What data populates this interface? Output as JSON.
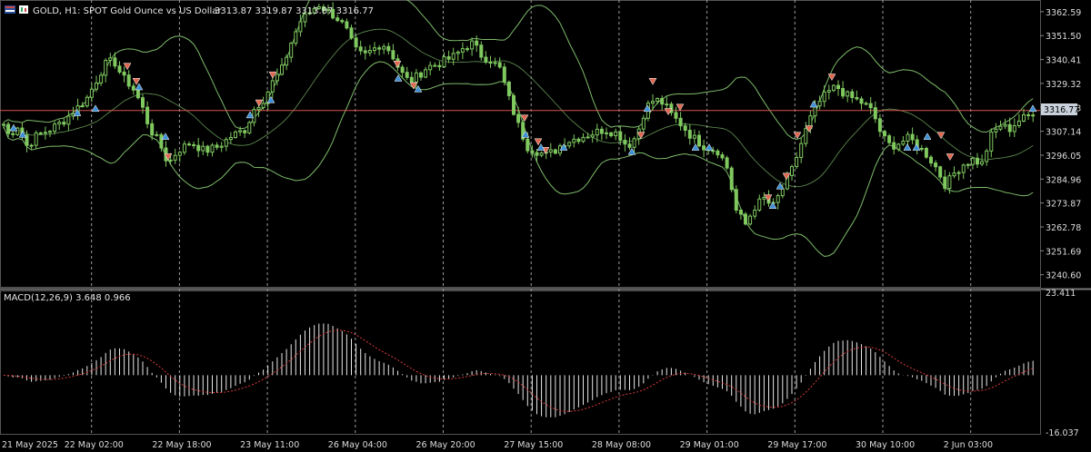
{
  "header": {
    "title": "GOLD, H1:  SPOT Gold Ounce vs US Dollar",
    "ohlc": "3313.87 3319.87 3313.87 3316.77"
  },
  "macd_header": {
    "label": "MACD(12,26,9) 3.648 0.966"
  },
  "colors": {
    "background": "#000000",
    "candle": "#7fc95f",
    "band": "#7dbb6a",
    "price_line": "#d9534f",
    "sell_arrow": "#e0674f",
    "buy_arrow": "#3d8fd6",
    "macd_hist": "#e8e8e8",
    "macd_signal": "#d93b3b",
    "grid": "#9a9a9a"
  },
  "chart_data": [
    {
      "type": "candlestick",
      "symbol": "GOLD",
      "timeframe": "H1",
      "ylim": [
        3235.0,
        3368.0
      ],
      "y_ticks": [
        "3362.59",
        "3351.50",
        "3340.41",
        "3329.32",
        "3318.23",
        "3307.14",
        "3296.05",
        "3284.96",
        "3273.87",
        "3262.78",
        "3251.69",
        "3240.60"
      ],
      "x_ticks": [
        "21 May 2025",
        "22 May 02:00",
        "22 May 18:00",
        "23 May 11:00",
        "26 May 04:00",
        "26 May 20:00",
        "27 May 15:00",
        "28 May 08:00",
        "29 May 01:00",
        "29 May 17:00",
        "30 May 10:00",
        "2 Jun 03:00"
      ],
      "current_price": "3316.77",
      "current_price_value": 3316.77,
      "key_points": [
        [
          0,
          3314
        ],
        [
          10,
          3305
        ],
        [
          20,
          3310
        ],
        [
          30,
          3300
        ],
        [
          40,
          3305
        ],
        [
          55,
          3308
        ],
        [
          70,
          3312
        ],
        [
          85,
          3318
        ],
        [
          95,
          3322
        ],
        [
          105,
          3330
        ],
        [
          115,
          3338
        ],
        [
          125,
          3340
        ],
        [
          135,
          3332
        ],
        [
          145,
          3328
        ],
        [
          155,
          3320
        ],
        [
          165,
          3308
        ],
        [
          175,
          3302
        ],
        [
          185,
          3292
        ],
        [
          195,
          3298
        ],
        [
          210,
          3302
        ],
        [
          225,
          3298
        ],
        [
          240,
          3300
        ],
        [
          255,
          3305
        ],
        [
          270,
          3308
        ],
        [
          280,
          3318
        ],
        [
          290,
          3322
        ],
        [
          300,
          3330
        ],
        [
          310,
          3336
        ],
        [
          320,
          3348
        ],
        [
          330,
          3358
        ],
        [
          340,
          3362
        ],
        [
          350,
          3366
        ],
        [
          360,
          3363
        ],
        [
          370,
          3360
        ],
        [
          380,
          3355
        ],
        [
          390,
          3345
        ],
        [
          400,
          3342
        ],
        [
          410,
          3345
        ],
        [
          420,
          3348
        ],
        [
          430,
          3344
        ],
        [
          440,
          3335
        ],
        [
          450,
          3330
        ],
        [
          460,
          3333
        ],
        [
          470,
          3337
        ],
        [
          480,
          3338
        ],
        [
          490,
          3340
        ],
        [
          500,
          3342
        ],
        [
          510,
          3346
        ],
        [
          520,
          3348
        ],
        [
          530,
          3342
        ],
        [
          540,
          3340
        ],
        [
          550,
          3336
        ],
        [
          560,
          3322
        ],
        [
          570,
          3310
        ],
        [
          580,
          3300
        ],
        [
          590,
          3298
        ],
        [
          600,
          3296
        ],
        [
          610,
          3298
        ],
        [
          620,
          3302
        ],
        [
          635,
          3304
        ],
        [
          650,
          3306
        ],
        [
          665,
          3308
        ],
        [
          680,
          3306
        ],
        [
          690,
          3300
        ],
        [
          700,
          3305
        ],
        [
          710,
          3318
        ],
        [
          720,
          3322
        ],
        [
          730,
          3320
        ],
        [
          740,
          3314
        ],
        [
          750,
          3310
        ],
        [
          760,
          3305
        ],
        [
          775,
          3300
        ],
        [
          790,
          3298
        ],
        [
          800,
          3290
        ],
        [
          810,
          3270
        ],
        [
          820,
          3264
        ],
        [
          830,
          3272
        ],
        [
          840,
          3276
        ],
        [
          850,
          3272
        ],
        [
          860,
          3280
        ],
        [
          870,
          3288
        ],
        [
          880,
          3300
        ],
        [
          890,
          3312
        ],
        [
          900,
          3320
        ],
        [
          910,
          3325
        ],
        [
          920,
          3328
        ],
        [
          930,
          3324
        ],
        [
          940,
          3322
        ],
        [
          950,
          3320
        ],
        [
          960,
          3316
        ],
        [
          970,
          3305
        ],
        [
          980,
          3300
        ],
        [
          990,
          3302
        ],
        [
          1000,
          3304
        ],
        [
          1010,
          3300
        ],
        [
          1020,
          3296
        ],
        [
          1030,
          3290
        ],
        [
          1040,
          3282
        ],
        [
          1050,
          3288
        ],
        [
          1060,
          3292
        ],
        [
          1070,
          3294
        ],
        [
          1080,
          3292
        ],
        [
          1090,
          3305
        ],
        [
          1100,
          3310
        ],
        [
          1110,
          3308
        ],
        [
          1120,
          3312
        ],
        [
          1130,
          3314
        ],
        [
          1138,
          3316.77
        ]
      ],
      "sell_signals": [
        [
          140,
          3337
        ],
        [
          150,
          3330
        ],
        [
          185,
          3295
        ],
        [
          285,
          3320
        ],
        [
          300,
          3333
        ],
        [
          437,
          3338
        ],
        [
          455,
          3328
        ],
        [
          577,
          3313
        ],
        [
          592,
          3302
        ],
        [
          600,
          3298
        ],
        [
          705,
          3305
        ],
        [
          718,
          3330
        ],
        [
          735,
          3316
        ],
        [
          748,
          3318
        ],
        [
          845,
          3276
        ],
        [
          865,
          3286
        ],
        [
          877,
          3305
        ],
        [
          890,
          3308
        ],
        [
          915,
          3332
        ],
        [
          1035,
          3305
        ],
        [
          1045,
          3295
        ]
      ],
      "buy_signals": [
        [
          15,
          3309
        ],
        [
          25,
          3306
        ],
        [
          85,
          3316
        ],
        [
          105,
          3318
        ],
        [
          153,
          3328
        ],
        [
          182,
          3305
        ],
        [
          275,
          3315
        ],
        [
          298,
          3322
        ],
        [
          438,
          3332
        ],
        [
          460,
          3327
        ],
        [
          578,
          3306
        ],
        [
          595,
          3300
        ],
        [
          620,
          3300
        ],
        [
          695,
          3298
        ],
        [
          712,
          3318
        ],
        [
          765,
          3300
        ],
        [
          780,
          3300
        ],
        [
          850,
          3273
        ],
        [
          858,
          3282
        ],
        [
          895,
          3320
        ],
        [
          998,
          3300
        ],
        [
          1008,
          3300
        ],
        [
          1020,
          3305
        ],
        [
          1136,
          3318
        ]
      ]
    },
    {
      "type": "macd",
      "label": "MACD(12,26,9) 3.648 0.966",
      "params": [
        12,
        26,
        9
      ],
      "macd": 3.648,
      "signal": 0.966,
      "ylim": [
        -16.037,
        23.411
      ],
      "y_ticks": [
        "23.411",
        "-16.037"
      ]
    }
  ]
}
